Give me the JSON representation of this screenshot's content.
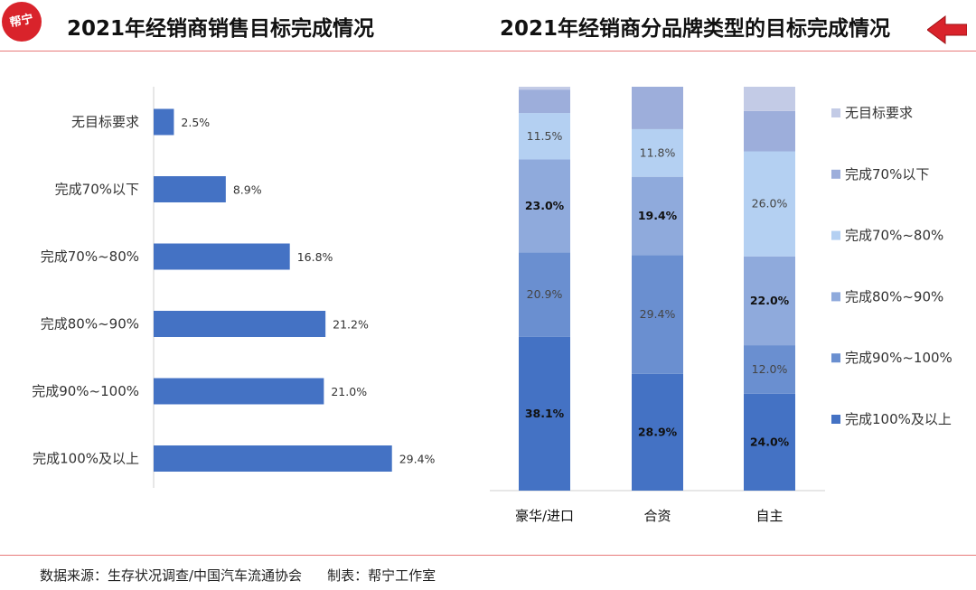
{
  "logo": {
    "text": "帮宁"
  },
  "header": {
    "left_title": "2021年经销商销售目标完成情况",
    "right_title": "2021年经销商分品牌类型的目标完成情况",
    "back_icon": "arrow-left-icon",
    "accent_color": "#d9232b"
  },
  "footer": {
    "source": "数据来源：生存状况调查/中国汽车流通协会",
    "made_by": "制表：帮宁工作室"
  },
  "chart_data": [
    {
      "type": "bar",
      "orientation": "horizontal",
      "categories": [
        "无目标要求",
        "完成70%以下",
        "完成70%~80%",
        "完成80%~90%",
        "完成90%~100%",
        "完成100%及以上"
      ],
      "values": [
        2.5,
        8.9,
        16.8,
        21.2,
        21.0,
        29.4
      ],
      "labels": [
        "2.5%",
        "8.9%",
        "16.8%",
        "21.2%",
        "21.0%",
        "29.4%"
      ],
      "color": "#4472c4",
      "grid": false
    },
    {
      "type": "bar",
      "stacked": true,
      "categories": [
        "豪华/进口",
        "合资",
        "自主"
      ],
      "series": [
        {
          "name": "完成100%及以上",
          "color": "#4472c4",
          "values": [
            38.1,
            28.9,
            24.0
          ],
          "labels": [
            "38.1%",
            "28.9%",
            "24.0%"
          ],
          "bold": true
        },
        {
          "name": "完成90%~100%",
          "color": "#6a8fd0",
          "values": [
            20.9,
            29.4,
            12.0
          ],
          "labels": [
            "20.9%",
            "29.4%",
            "12.0%"
          ],
          "bold": false
        },
        {
          "name": "完成80%~90%",
          "color": "#8faadc",
          "values": [
            23.0,
            19.4,
            22.0
          ],
          "labels": [
            "23.0%",
            "19.4%",
            "22.0%"
          ],
          "bold": true
        },
        {
          "name": "完成70%~80%",
          "color": "#b4d0f2",
          "values": [
            11.5,
            11.8,
            26.0
          ],
          "labels": [
            "11.5%",
            "11.8%",
            "26.0%"
          ],
          "bold": false
        },
        {
          "name": "完成70%以下",
          "color": "#9daedb",
          "values": [
            5.8,
            10.5,
            10.0
          ],
          "labels": [
            "",
            "",
            ""
          ],
          "bold": false
        },
        {
          "name": "无目标要求",
          "color": "#c3cbe6",
          "values": [
            0.7,
            0.0,
            6.0
          ],
          "labels": [
            "",
            "",
            ""
          ],
          "bold": false
        }
      ],
      "ylim": [
        0,
        100
      ],
      "legend": "right",
      "grid": false
    }
  ]
}
